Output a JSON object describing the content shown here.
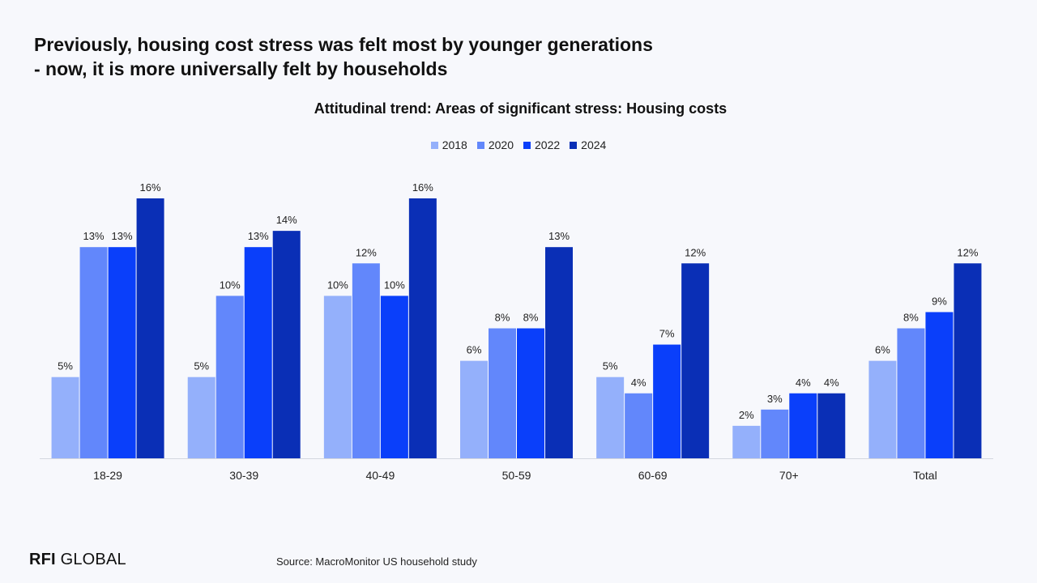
{
  "headline": {
    "line1": "Previously, housing cost stress was felt most by younger generations",
    "line2": "- now, it is more universally felt by households"
  },
  "logo": {
    "strong": "RFI",
    "rest": " GLOBAL"
  },
  "source": "Source: MacroMonitor US household study",
  "colors": [
    "#94b0fb",
    "#6287fb",
    "#0a3ffa",
    "#0a2fb6"
  ],
  "chart_data": {
    "type": "bar",
    "title": "Attitudinal trend: Areas of significant stress: Housing costs",
    "categories": [
      "18-29",
      "30-39",
      "40-49",
      "50-59",
      "60-69",
      "70+",
      "Total"
    ],
    "series": [
      {
        "name": "2018",
        "values": [
          5,
          5,
          10,
          6,
          5,
          2,
          6
        ],
        "labels": [
          "5%",
          "5%",
          "10%",
          "6%",
          "5%",
          "2%",
          "6%"
        ]
      },
      {
        "name": "2020",
        "values": [
          13,
          10,
          12,
          8,
          4,
          3,
          8
        ],
        "labels": [
          "13%",
          "10%",
          "12%",
          "8%",
          "4%",
          "3%",
          "8%"
        ]
      },
      {
        "name": "2022",
        "values": [
          13,
          13,
          10,
          8,
          7,
          4,
          9
        ],
        "labels": [
          "13%",
          "13%",
          "10%",
          "8%",
          "7%",
          "4%",
          "9%"
        ]
      },
      {
        "name": "2024",
        "values": [
          16,
          14,
          16,
          13,
          12,
          4,
          12
        ],
        "labels": [
          "16%",
          "14%",
          "16%",
          "13%",
          "12%",
          "4%",
          "12%"
        ]
      }
    ],
    "xlabel": "",
    "ylabel": "",
    "ylim": [
      0,
      16
    ],
    "grid": false,
    "legend": "top-center"
  }
}
